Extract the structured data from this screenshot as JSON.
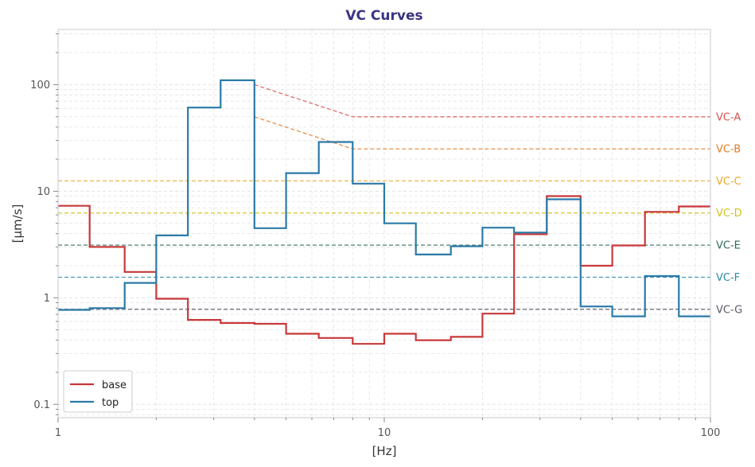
{
  "chart_data": {
    "type": "line",
    "step": "post",
    "title": "VC Curves",
    "xlabel": "[Hz]",
    "ylabel": "[µm/s]",
    "xscale": "log",
    "yscale": "log",
    "xlim": [
      1,
      100
    ],
    "ylim": [
      0.075,
      330
    ],
    "grid": true,
    "legend_position": "lower-left",
    "xticks": [
      {
        "value": 1,
        "label": "1"
      },
      {
        "value": 10,
        "label": "10"
      },
      {
        "value": 100,
        "label": "100"
      }
    ],
    "yticks": [
      {
        "value": 0.1,
        "label": "0.1"
      },
      {
        "value": 1,
        "label": "1"
      },
      {
        "value": 10,
        "label": "10"
      },
      {
        "value": 100,
        "label": "100"
      }
    ],
    "bands": [
      1,
      1.25,
      1.6,
      2,
      2.5,
      3.15,
      4,
      5,
      6.3,
      8,
      10,
      12.5,
      16,
      20,
      25,
      31.5,
      40,
      50,
      63,
      80,
      100
    ],
    "series": [
      {
        "name": "base",
        "color": "#c8383a",
        "values": [
          7.3,
          3.0,
          1.75,
          0.98,
          0.62,
          0.58,
          0.57,
          0.46,
          0.42,
          0.37,
          0.46,
          0.4,
          0.43,
          0.71,
          3.95,
          9.0,
          2.0,
          3.1,
          6.4,
          7.2
        ]
      },
      {
        "name": "top",
        "color": "#2a7aa8",
        "values": [
          0.77,
          0.8,
          1.38,
          3.85,
          61,
          110,
          4.5,
          14.8,
          29,
          11.8,
          5.0,
          2.55,
          3.05,
          4.55,
          4.1,
          8.4,
          0.83,
          0.67,
          1.6,
          0.67
        ]
      }
    ],
    "reference_lines": [
      {
        "label": "VC-A",
        "color": "#d9534f",
        "points": [
          [
            4,
            100
          ],
          [
            8,
            50
          ],
          [
            100,
            50
          ]
        ]
      },
      {
        "label": "VC-B",
        "color": "#e07b28",
        "points": [
          [
            4,
            50
          ],
          [
            8,
            25
          ],
          [
            100,
            25
          ]
        ]
      },
      {
        "label": "VC-C",
        "color": "#e8a828",
        "points": [
          [
            1,
            12.5
          ],
          [
            100,
            12.5
          ]
        ]
      },
      {
        "label": "VC-D",
        "color": "#d4c21e",
        "points": [
          [
            1,
            6.25
          ],
          [
            100,
            6.25
          ]
        ]
      },
      {
        "label": "VC-E",
        "color": "#2e6b5a",
        "points": [
          [
            1,
            3.12
          ],
          [
            100,
            3.12
          ]
        ]
      },
      {
        "label": "VC-F",
        "color": "#2a8aa8",
        "points": [
          [
            1,
            1.56
          ],
          [
            100,
            1.56
          ]
        ]
      },
      {
        "label": "VC-G",
        "color": "#5a5a6a",
        "points": [
          [
            1,
            0.78
          ],
          [
            100,
            0.78
          ]
        ]
      }
    ],
    "colors": {
      "title": "#3a3580",
      "grid": "#e4e4e8",
      "axis": "#c8c8d0"
    }
  }
}
